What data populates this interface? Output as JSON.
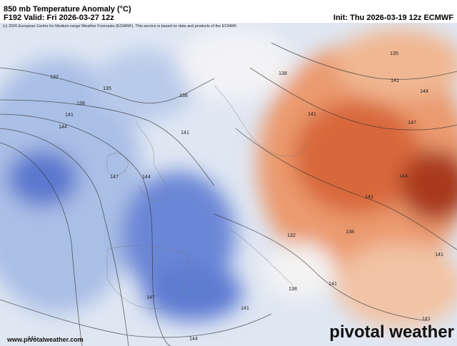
{
  "header": {
    "title": "850 mb Temperature Anomaly (°C)",
    "valid": "F192 Valid: Fri 2026-03-27 12z",
    "init": "Init: Thu 2026-03-19 12z ECMWF",
    "copyright": "(c) 2026 European Centre for Medium-range Weather Forecasts (ECMWF). This service is based on data and products of the ECMWF."
  },
  "contour_labels": [
    132,
    135,
    138,
    138,
    141,
    144,
    141,
    147,
    144,
    135,
    138,
    141,
    144,
    141,
    147,
    144,
    141,
    138,
    132,
    138,
    141,
    141,
    147,
    141,
    144,
    141,
    141
  ],
  "footer": {
    "url": "www.pivotalweather.com",
    "brand": "pivotal weather"
  }
}
